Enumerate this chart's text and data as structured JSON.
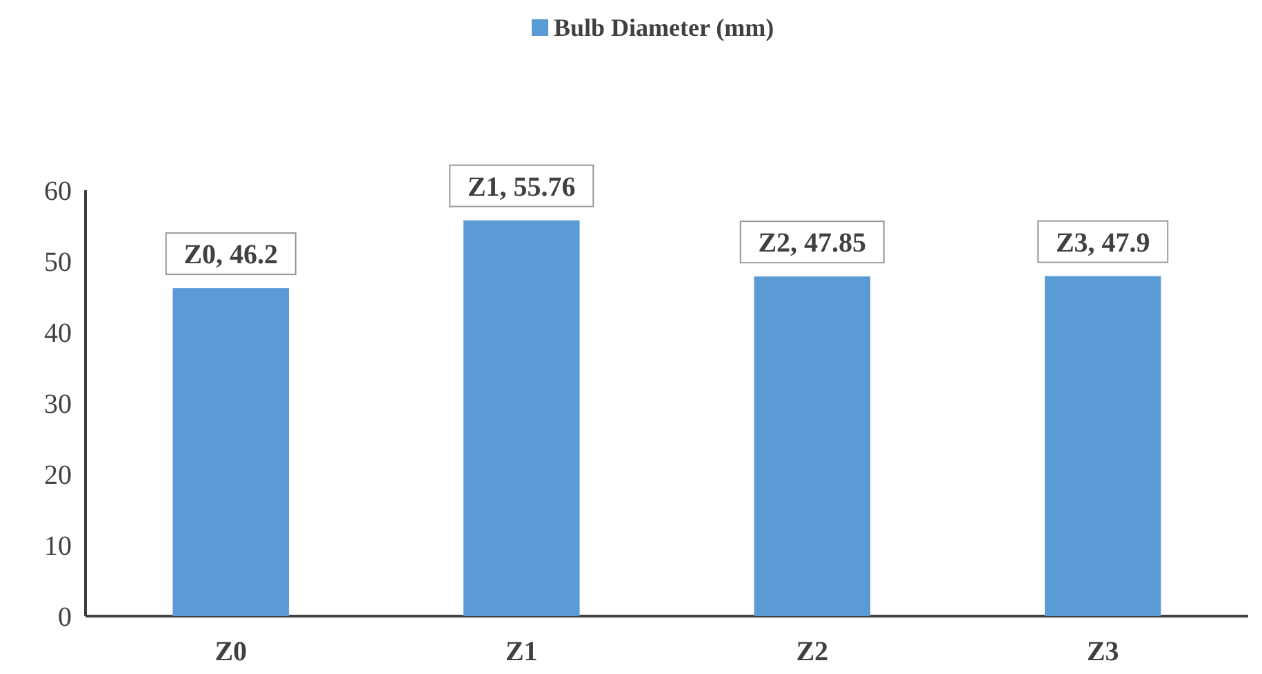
{
  "chart_data": {
    "type": "bar",
    "categories": [
      "Z0",
      "Z1",
      "Z2",
      "Z3"
    ],
    "series": [
      {
        "name": "Bulb Diameter (mm)",
        "color": "#5b9bd5",
        "values": [
          46.2,
          55.76,
          47.85,
          47.9
        ],
        "value_labels": [
          "Z0, 46.2",
          "Z1, 55.76",
          "Z2, 47.85",
          "Z3, 47.9"
        ]
      }
    ],
    "ylim": [
      0,
      60
    ],
    "yticks": [
      0,
      10,
      20,
      30,
      40,
      50,
      60
    ],
    "grid": false,
    "legend": "top"
  }
}
